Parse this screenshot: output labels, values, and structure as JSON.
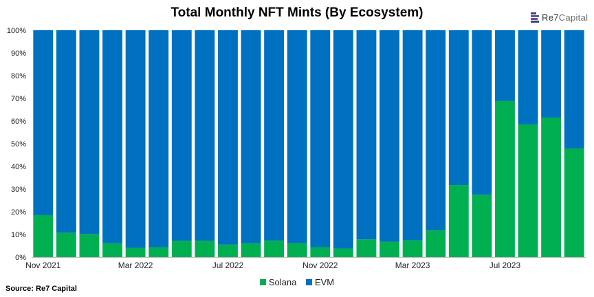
{
  "title": "Total Monthly NFT Mints (By Ecosystem)",
  "logo": {
    "prefix": "Re7",
    "suffix": "Capital"
  },
  "source": "Source: Re7 Capital",
  "colors": {
    "solana": "#00b050",
    "evm": "#0070c0",
    "axis": "#bfbfbf"
  },
  "legend": [
    {
      "label": "Solana",
      "color": "#00b050"
    },
    {
      "label": "EVM",
      "color": "#0070c0"
    }
  ],
  "chart_data": {
    "type": "bar",
    "stacked": true,
    "percent": true,
    "categories": [
      "Nov 2021",
      "Dec 2021",
      "Jan 2022",
      "Feb 2022",
      "Mar 2022",
      "Apr 2022",
      "May 2022",
      "Jun 2022",
      "Jul 2022",
      "Aug 2022",
      "Sep 2022",
      "Oct 2022",
      "Nov 2022",
      "Dec 2022",
      "Jan 2023",
      "Feb 2023",
      "Mar 2023",
      "Apr 2023",
      "May 2023",
      "Jun 2023",
      "Jul 2023",
      "Aug 2023",
      "Sep 2023",
      "Oct 2023"
    ],
    "x_tick_labels": [
      "Nov 2021",
      "Mar 2022",
      "Jul 2022",
      "Nov 2022",
      "Mar 2023",
      "Jul 2023"
    ],
    "series": [
      {
        "name": "Solana",
        "values": [
          18.5,
          10.7,
          10.2,
          6.1,
          4.1,
          4.4,
          7.2,
          7.2,
          5.5,
          6.1,
          7.3,
          6.1,
          4.4,
          3.8,
          7.8,
          6.8,
          7.4,
          11.8,
          31.8,
          27.5,
          68.8,
          58.5,
          61.5,
          47.9
        ]
      },
      {
        "name": "EVM",
        "values": [
          81.5,
          89.3,
          89.8,
          93.9,
          95.9,
          95.6,
          92.8,
          92.8,
          94.5,
          93.9,
          92.7,
          93.9,
          95.6,
          96.2,
          92.2,
          93.2,
          92.6,
          88.2,
          68.2,
          72.5,
          31.2,
          41.5,
          38.5,
          52.1
        ]
      }
    ],
    "y_ticks": [
      "0%",
      "10%",
      "20%",
      "30%",
      "40%",
      "50%",
      "60%",
      "70%",
      "80%",
      "90%",
      "100%"
    ],
    "ylim": [
      0,
      100
    ],
    "legend_position": "bottom",
    "grid": false
  }
}
